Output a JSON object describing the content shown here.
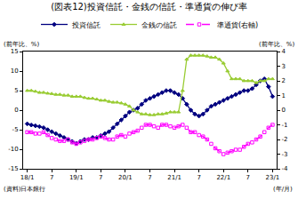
{
  "chart_data": {
    "type": "line",
    "title": "(図表12)投資信託・金銭の信託・準通貨の伸び率",
    "y_label": "(前年比、%)",
    "y2_label": "(前年比、%)",
    "x_label": "(年/月)",
    "annotations": [
      "(資料)日本銀行"
    ],
    "categories": [
      "18/1",
      null,
      null,
      null,
      null,
      null,
      "7",
      null,
      null,
      null,
      null,
      null,
      "19/1",
      null,
      null,
      null,
      null,
      null,
      "7",
      null,
      null,
      null,
      null,
      null,
      "20/1",
      null,
      null,
      null,
      null,
      null,
      "7",
      null,
      null,
      null,
      null,
      null,
      "21/1",
      null,
      null,
      null,
      null,
      null,
      "7",
      null,
      null,
      null,
      null,
      null,
      "22/1",
      null,
      null,
      null,
      null,
      null,
      "7",
      null,
      null,
      null,
      null,
      null,
      "23/1"
    ],
    "series": [
      {
        "name": "投資信託",
        "color": "#000080",
        "marker": "diamond",
        "line_style": "solid",
        "values": [
          -3.5,
          -3.8,
          -4,
          -4.2,
          -4.5,
          -5,
          -5.5,
          -6,
          -6.5,
          -7,
          -7.5,
          -8,
          -8.5,
          -8,
          -7.5,
          -7.5,
          -7,
          -7,
          -6.5,
          -6,
          -5.5,
          -4.5,
          -3.5,
          -2.5,
          -1.5,
          -0.5,
          0,
          0.5,
          1.5,
          2.5,
          3,
          3.5,
          4,
          4.5,
          5,
          5,
          4.5,
          4,
          3,
          1.5,
          0,
          -1,
          -1.5,
          -1,
          0,
          1,
          1.5,
          2,
          2.5,
          3,
          3.5,
          4,
          4.5,
          5,
          5,
          5.5,
          6.5,
          7.5,
          8,
          6,
          3.5
        ]
      },
      {
        "name": "金銭の信託",
        "color": "#99cc33",
        "marker": "triangle-up",
        "line_style": "solid",
        "values": [
          5,
          5,
          4.8,
          4.5,
          4.5,
          4.3,
          4.2,
          4,
          4,
          3.8,
          3.8,
          3.5,
          3.5,
          3.5,
          3.2,
          3,
          3,
          2.8,
          2.5,
          2.5,
          2.2,
          2,
          2,
          1.8,
          1.5,
          1,
          0,
          -0.5,
          -1,
          -1,
          -1.2,
          -1.2,
          -1,
          -1,
          -0.8,
          -0.5,
          -0.5,
          -0.5,
          5,
          13,
          14,
          14,
          14,
          14,
          13.8,
          13.5,
          13.5,
          13,
          12,
          10,
          8,
          8,
          8,
          7.5,
          7.5,
          7.5,
          7,
          7.5,
          7.5,
          8,
          8
        ]
      },
      {
        "name": "準通貨(右軸)",
        "color": "#ff00ff",
        "marker": "square-open",
        "line_style": "dash",
        "axis": "y2",
        "values": [
          -1.5,
          -1.5,
          -1.6,
          -1.6,
          -1.5,
          -1.7,
          -1.9,
          -2,
          -2.1,
          -2.1,
          -2,
          -2.2,
          -2.3,
          -2.2,
          -2.1,
          -2,
          -2,
          -1.9,
          -1.8,
          -1.9,
          -2,
          -2,
          -1.8,
          -1.7,
          -1.8,
          -1.6,
          -1.5,
          -1.4,
          -1.2,
          -1,
          -1,
          -1.1,
          -1.2,
          -1,
          -1,
          -1.1,
          -1.2,
          -1.1,
          -1,
          -1.2,
          -1.5,
          -1.5,
          -1.7,
          -1.8,
          -2,
          -2.3,
          -2.6,
          -2.8,
          -3,
          -2.9,
          -2.8,
          -2.7,
          -2.7,
          -2.5,
          -2.3,
          -2.2,
          -2,
          -1.8,
          -1.5,
          -1.2,
          -1
        ]
      }
    ],
    "ylim": [
      -15,
      15
    ],
    "yticks": [
      -15,
      -10,
      -5,
      0,
      5,
      10,
      15
    ],
    "y2lim": [
      -4,
      4
    ],
    "y2ticks": [
      -4,
      -3,
      -2,
      -1,
      0,
      1,
      2,
      3,
      4
    ],
    "grid": false,
    "legend": "top"
  }
}
